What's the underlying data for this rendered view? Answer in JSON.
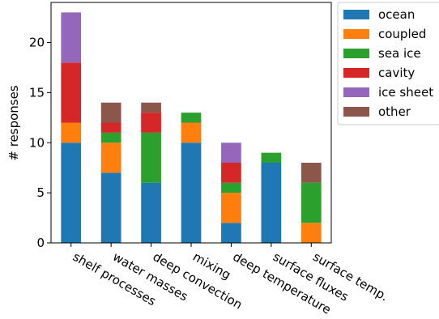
{
  "chart_data": {
    "type": "bar",
    "stacked": true,
    "title": "",
    "xlabel": "",
    "ylabel": "# responses",
    "ylim": [
      0,
      24
    ],
    "yticks": [
      0,
      5,
      10,
      15,
      20
    ],
    "grid": false,
    "legend_position": "outside-top-right",
    "categories": [
      "shelf processes",
      "water masses",
      "deep convection",
      "mixing",
      "deep temperature",
      "surface fluxes",
      "surface temp."
    ],
    "series": [
      {
        "name": "ocean",
        "color": "#1f77b4",
        "values": [
          10,
          7,
          6,
          10,
          2,
          8,
          0
        ]
      },
      {
        "name": "coupled",
        "color": "#ff7f0e",
        "values": [
          2,
          3,
          0,
          2,
          3,
          0,
          2
        ]
      },
      {
        "name": "sea ice",
        "color": "#2ca02c",
        "values": [
          0,
          1,
          5,
          1,
          1,
          1,
          4
        ]
      },
      {
        "name": "cavity",
        "color": "#d62728",
        "values": [
          6,
          1,
          2,
          0,
          2,
          0,
          0
        ]
      },
      {
        "name": "ice sheet",
        "color": "#9467bd",
        "values": [
          5,
          0,
          0,
          0,
          2,
          0,
          0
        ]
      },
      {
        "name": "other",
        "color": "#8c564b",
        "values": [
          0,
          2,
          1,
          0,
          0,
          0,
          2
        ]
      }
    ]
  }
}
